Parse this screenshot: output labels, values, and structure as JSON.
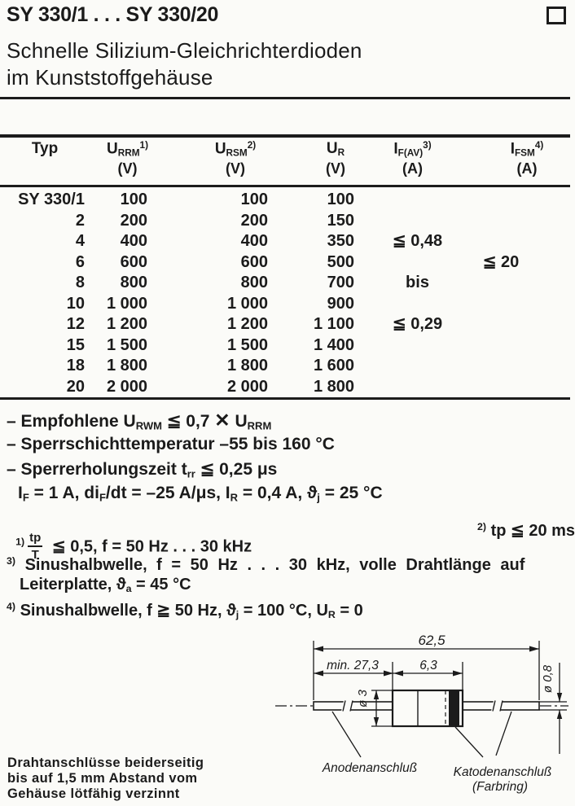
{
  "header": {
    "title": "SY 330/1 . . . SY 330/20",
    "subtitle_line1": "Schnelle Silizium-Gleichrichterdioden",
    "subtitle_line2": "im Kunststoffgehäuse"
  },
  "table": {
    "headers": [
      {
        "label": [
          {
            "t": "Typ"
          }
        ],
        "unit": ""
      },
      {
        "label": [
          {
            "t": "U"
          },
          {
            "t": "RRM",
            "s": "sub"
          },
          {
            "t": "1)",
            "s": "sup"
          }
        ],
        "unit": "(V)"
      },
      {
        "label": [
          {
            "t": "U"
          },
          {
            "t": "RSM",
            "s": "sub"
          },
          {
            "t": "2)",
            "s": "sup"
          }
        ],
        "unit": "(V)"
      },
      {
        "label": [
          {
            "t": "U"
          },
          {
            "t": "R",
            "s": "sub"
          }
        ],
        "unit": "(V)"
      },
      {
        "label": [
          {
            "t": "I"
          },
          {
            "t": "F(AV)",
            "s": "sub"
          },
          {
            "t": "3)",
            "s": "sup"
          }
        ],
        "unit": "(A)"
      },
      {
        "label": [
          {
            "t": "I"
          },
          {
            "t": "FSM",
            "s": "sub"
          },
          {
            "t": "4)",
            "s": "sup"
          }
        ],
        "unit": "(A)"
      }
    ],
    "rows": [
      {
        "typ": "SY 330/1",
        "urrm": "100",
        "ursm": "100",
        "ur": "100",
        "ifav": "",
        "ifsm": ""
      },
      {
        "typ": "2",
        "urrm": "200",
        "ursm": "200",
        "ur": "150",
        "ifav": "",
        "ifsm": ""
      },
      {
        "typ": "4",
        "urrm": "400",
        "ursm": "400",
        "ur": "350",
        "ifav": "≦ 0,48",
        "ifsm": ""
      },
      {
        "typ": "6",
        "urrm": "600",
        "ursm": "600",
        "ur": "500",
        "ifav": "",
        "ifsm": "≦ 20"
      },
      {
        "typ": "8",
        "urrm": "800",
        "ursm": "800",
        "ur": "700",
        "ifav": "bis",
        "ifsm": ""
      },
      {
        "typ": "10",
        "urrm": "1 000",
        "ursm": "1 000",
        "ur": "900",
        "ifav": "",
        "ifsm": ""
      },
      {
        "typ": "12",
        "urrm": "1 200",
        "ursm": "1 200",
        "ur": "1 100",
        "ifav": "≦ 0,29",
        "ifsm": ""
      },
      {
        "typ": "15",
        "urrm": "1 500",
        "ursm": "1 500",
        "ur": "1 400",
        "ifav": "",
        "ifsm": ""
      },
      {
        "typ": "18",
        "urrm": "1 800",
        "ursm": "1 800",
        "ur": "1 600",
        "ifav": "",
        "ifsm": ""
      },
      {
        "typ": "20",
        "urrm": "2 000",
        "ursm": "2 000",
        "ur": "1 800",
        "ifav": "",
        "ifsm": ""
      }
    ]
  },
  "notes": {
    "line1": [
      {
        "t": "– Empfohlene U"
      },
      {
        "t": "RWM",
        "s": "sub"
      },
      {
        "t": " ≦ 0,7 "
      },
      {
        "t": "✕",
        "s": "big"
      },
      {
        "t": " U"
      },
      {
        "t": "RRM",
        "s": "sub"
      }
    ],
    "line2": [
      {
        "t": "– Sperrschichttemperatur –55 bis 160 °C"
      }
    ],
    "line3": [
      {
        "t": "– Sperrerholungszeit t"
      },
      {
        "t": "rr",
        "s": "sub"
      },
      {
        "t": " ≦ 0,25 μs"
      }
    ],
    "line4": [
      {
        "t": "I"
      },
      {
        "t": "F",
        "s": "sub"
      },
      {
        "t": " = 1 A, di"
      },
      {
        "t": "F",
        "s": "sub"
      },
      {
        "t": "/dt = –25 A/μs, I"
      },
      {
        "t": "R",
        "s": "sub"
      },
      {
        "t": " = 0,4 A, ϑ"
      },
      {
        "t": "j",
        "s": "sub"
      },
      {
        "t": " = 25 °C"
      }
    ]
  },
  "footnotes": {
    "fn1_sup": "1)",
    "fn1_frac_num": "tp",
    "fn1_frac_den": "T",
    "fn1_rest": " ≦ 0,5, f = 50 Hz . . . 30 kHz",
    "fn2": [
      {
        "t": "2)",
        "s": "sup"
      },
      {
        "t": " tp ≦ 20 ms"
      }
    ],
    "fn3_line1": [
      {
        "t": "3)",
        "s": "sup"
      },
      {
        "t": " Sinushalbwelle, f = 50 Hz . . . 30 kHz, volle Drahtlänge auf"
      }
    ],
    "fn3_line2": [
      {
        "t": "Leiterplatte, ϑ"
      },
      {
        "t": "a",
        "s": "sub"
      },
      {
        "t": " = 45 °C"
      }
    ],
    "fn4": [
      {
        "t": "4)",
        "s": "sup"
      },
      {
        "t": " Sinushalbwelle, f ≧ 50 Hz, ϑ"
      },
      {
        "t": "j",
        "s": "sub"
      },
      {
        "t": " = 100 °C, U"
      },
      {
        "t": "R",
        "s": "sub"
      },
      {
        "t": " = 0"
      }
    ]
  },
  "diagram": {
    "dim_overall": "62,5",
    "dim_lead_length": "min. 27,3",
    "dim_body_length": "6,3",
    "dim_body_dia": "ø 3",
    "dim_lead_dia": "ø 0,8",
    "label_anode": "Anodenanschluß",
    "label_cathode": "Katodenanschluß",
    "label_cathode_ring": "(Farbring)"
  },
  "footer_note": {
    "line1": "Drahtanschlüsse beiderseitig",
    "line2": "bis auf 1,5 mm Abstand vom",
    "line3": "Gehäuse lötfähig verzinnt"
  },
  "colors": {
    "ink": "#1b1b1b",
    "paper": "#fbfbf8"
  }
}
